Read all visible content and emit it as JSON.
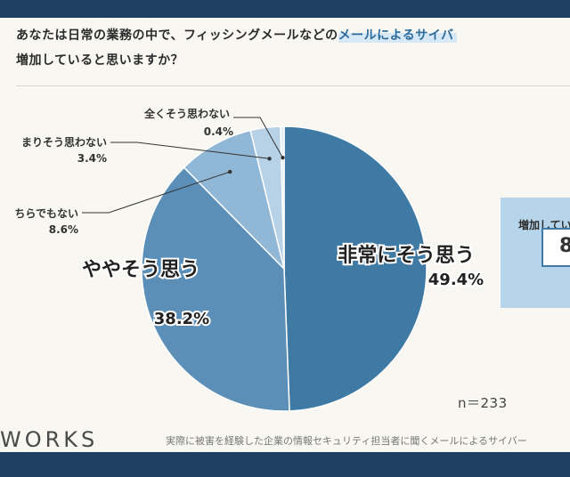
{
  "question": {
    "line1_before": "あなたは日常の業務の中で、フィッシングメールなどの",
    "line1_highlight": "メールによるサイバ",
    "line2": "増加していると思いますか？"
  },
  "colors": {
    "slice_1": "#3f7aa4",
    "slice_2": "#5b8fb8",
    "slice_3": "#90b7d6",
    "slice_4": "#b7d2e7",
    "slice_5": "#e2edf5",
    "background": "#f8f7f2",
    "frame": "#1f3f63"
  },
  "chart_data": {
    "type": "pie",
    "title": "あなたは日常の業務の中で、フィッシングメールなどのメールによるサイバ 増加していると思いますか？",
    "slices": [
      {
        "label": "非常にそう思う",
        "value": 49.4,
        "value_label": "49.4%"
      },
      {
        "label": "ややそう思う",
        "value": 38.2,
        "value_label": "38.2%"
      },
      {
        "label": "ちらでもない",
        "value": 8.6,
        "value_label": "8.6%"
      },
      {
        "label": "まりそう思わない",
        "value": 3.4,
        "value_label": "3.4%"
      },
      {
        "label": "全くそう思わない",
        "value": 0.4,
        "value_label": "0.4%"
      }
    ],
    "start_angle_deg": 0,
    "direction": "clockwise"
  },
  "sample": "n＝233",
  "logo": "WORKS",
  "source": "実際に被害を経験した企業の情報セキュリティ担当者に聞くメールによるサイバー",
  "side_card": {
    "title": "増加してい",
    "value": "8"
  }
}
